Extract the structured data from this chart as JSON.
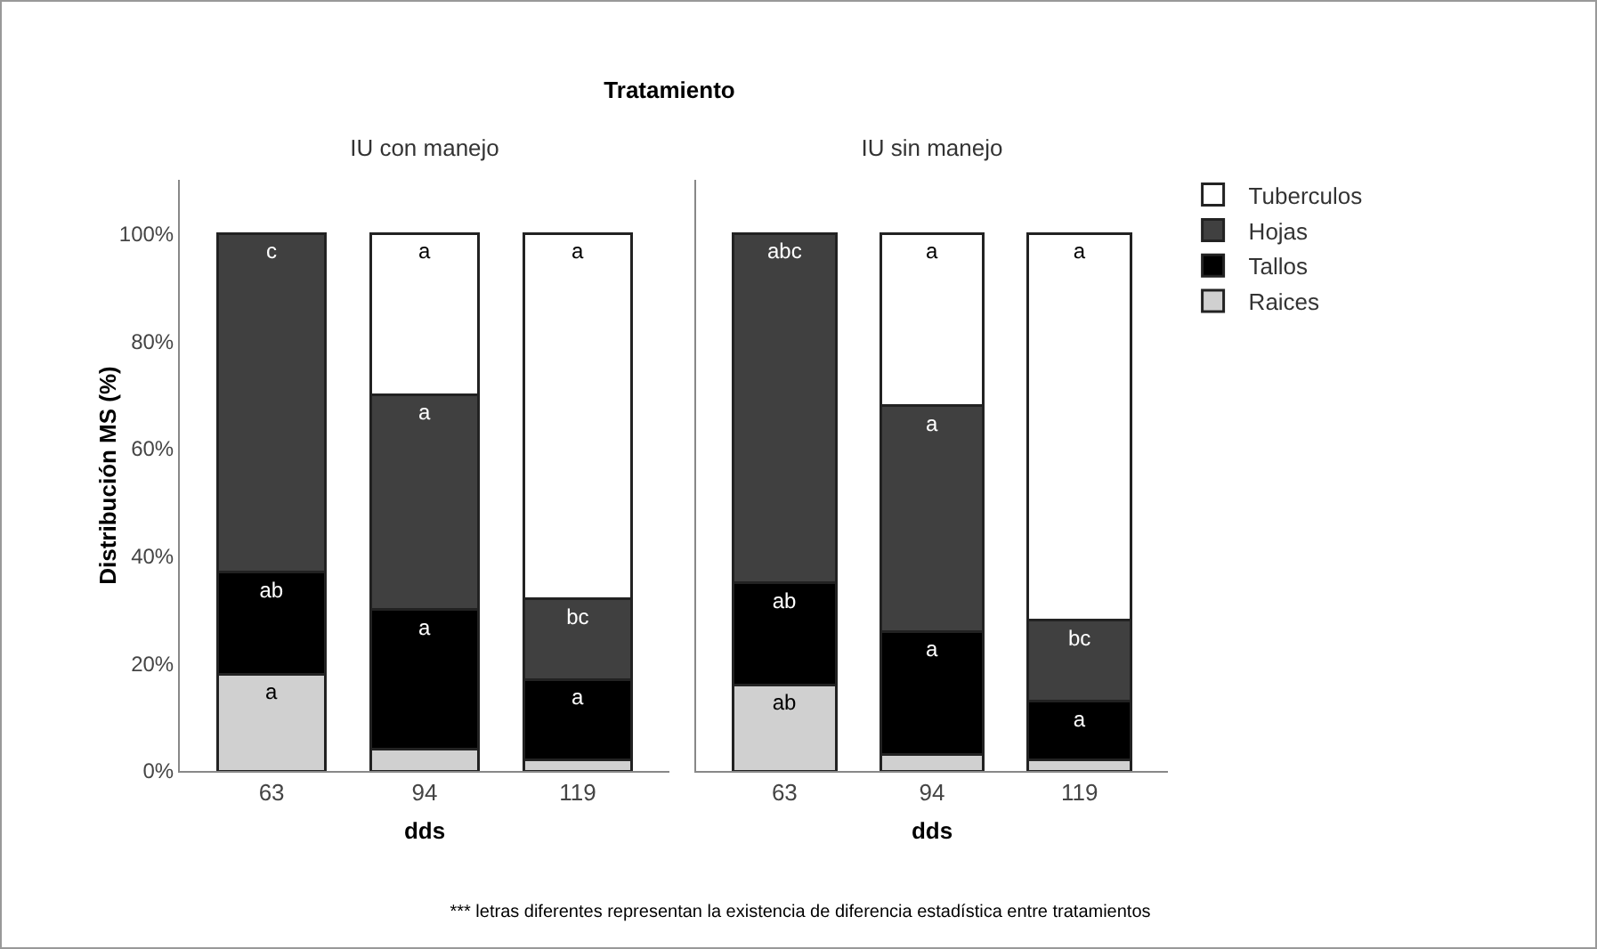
{
  "chart_data": [
    {
      "type": "bar",
      "title": "Tratamiento",
      "subtitle": "IU con manejo",
      "xlabel": "dds",
      "ylabel": "Distribución MS (%)",
      "categories": [
        "63",
        "94",
        "119"
      ],
      "stacked": true,
      "legend": false,
      "series": [
        {
          "color": "#d0d0d0",
          "values": [
            18,
            4,
            2
          ],
          "value_labels": [
            "a",
            null,
            null
          ]
        },
        {
          "color": "#000000",
          "values": [
            19,
            26,
            15
          ],
          "value_labels": [
            "ab",
            "a",
            "a"
          ]
        },
        {
          "color": "#404040",
          "values": [
            63,
            40,
            15
          ],
          "value_labels": [
            "c",
            "a",
            "bc"
          ]
        },
        {
          "color": "#ffffff",
          "values": [
            null,
            30,
            68
          ],
          "value_labels": [
            null,
            "a",
            "a"
          ]
        }
      ],
      "ylim": [
        0,
        110
      ],
      "yticks": [
        {
          "value": 0,
          "label": "0%"
        },
        {
          "value": 20,
          "label": "20%"
        },
        {
          "value": 40,
          "label": "40%"
        },
        {
          "value": 60,
          "label": "60%"
        },
        {
          "value": 80,
          "label": "80%"
        },
        {
          "value": 100,
          "label": "100%"
        }
      ]
    },
    {
      "type": "bar",
      "subtitle": "IU sin manejo",
      "xlabel": "dds",
      "categories": [
        "63",
        "94",
        "119"
      ],
      "stacked": true,
      "legend": "right",
      "tick_labels": "x",
      "series": [
        {
          "name": "Raices",
          "color": "#d0d0d0",
          "values": [
            16,
            3,
            2
          ],
          "value_labels": [
            "ab",
            null,
            null
          ]
        },
        {
          "name": "Tallos",
          "color": "#000000",
          "values": [
            19,
            23,
            11
          ],
          "value_labels": [
            "ab",
            "a",
            "a"
          ]
        },
        {
          "name": "Hojas",
          "color": "#404040",
          "values": [
            65,
            42,
            15
          ],
          "value_labels": [
            "abc",
            "a",
            "bc"
          ]
        },
        {
          "name": "Tuberculos",
          "color": "#ffffff",
          "values": [
            null,
            32,
            72
          ],
          "value_labels": [
            null,
            "a",
            "a"
          ]
        }
      ],
      "ylim": [
        0,
        110
      ],
      "yticks": [
        {
          "value": 0,
          "label": null
        },
        {
          "value": 20,
          "label": null
        },
        {
          "value": 40,
          "label": null
        },
        {
          "value": 60,
          "label": null
        },
        {
          "value": 80,
          "label": null
        },
        {
          "value": 100,
          "label": null
        }
      ],
      "annotations": [
        "*** letras diferentes representan la existencia de diferencia estadística entre tratamientos"
      ]
    }
  ]
}
